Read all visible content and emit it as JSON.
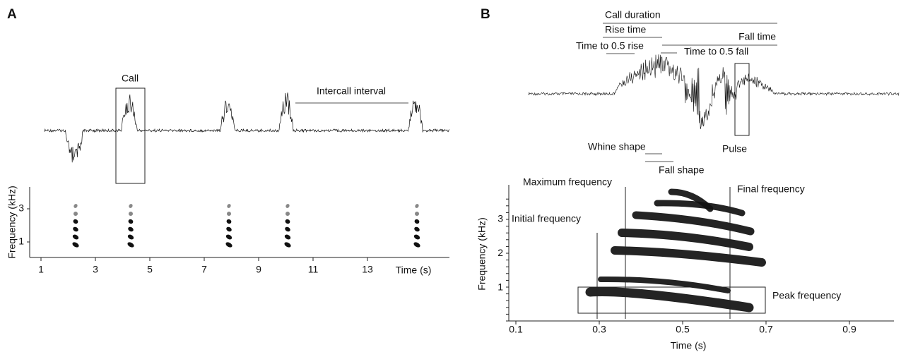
{
  "panel_a": {
    "label": "A",
    "call": "Call",
    "intercall": "Intercall interval",
    "y_axis_label": "Frequency (kHz)",
    "y_ticks": [
      1,
      3
    ],
    "x_ticks": [
      1,
      3,
      5,
      7,
      9,
      11,
      13
    ],
    "x_axis_label": "Time (s)"
  },
  "panel_b": {
    "label": "B",
    "call_duration": "Call duration",
    "rise_time": "Rise time",
    "fall_time": "Fall time",
    "time_to_half_rise": "Time to 0.5 rise",
    "time_to_half_fall": "Time to 0.5 fall",
    "pulse": "Pulse",
    "whine_shape": "Whine shape",
    "fall_shape": "Fall shape",
    "maximum_frequency": "Maximum frequency",
    "final_frequency": "Final frequency",
    "initial_frequency": "Initial frequency",
    "peak_frequency": "Peak frequency",
    "y_axis_label": "Frequency (kHz)",
    "y_ticks": [
      1,
      2,
      3
    ],
    "x_ticks": [
      0.1,
      0.3,
      0.5,
      0.7,
      0.9
    ],
    "x_axis_label": "Time (s)"
  }
}
